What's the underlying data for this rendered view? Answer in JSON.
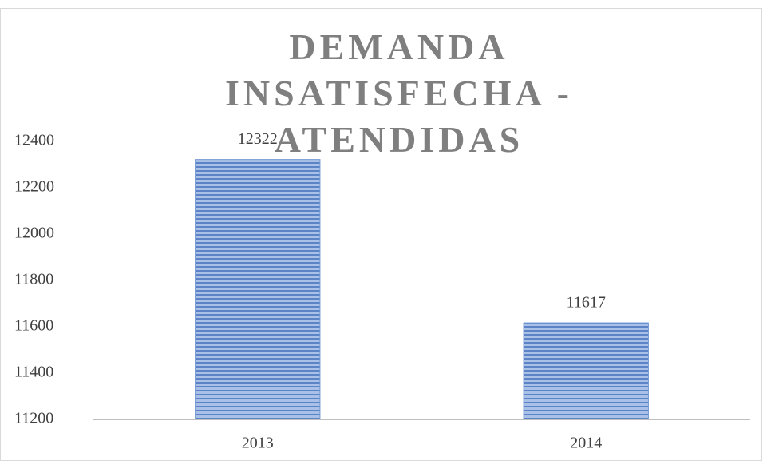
{
  "chart_data": {
    "type": "bar",
    "title": "DEMANDA INSATISFECHA - ATENDIDAS",
    "categories": [
      "2013",
      "2014"
    ],
    "values": [
      12322,
      11617
    ],
    "color": "#7398d4",
    "ylim": [
      11200,
      12400
    ],
    "yticks": [
      11200,
      11400,
      11600,
      11800,
      12000,
      12200,
      12400
    ],
    "grid": false
  }
}
